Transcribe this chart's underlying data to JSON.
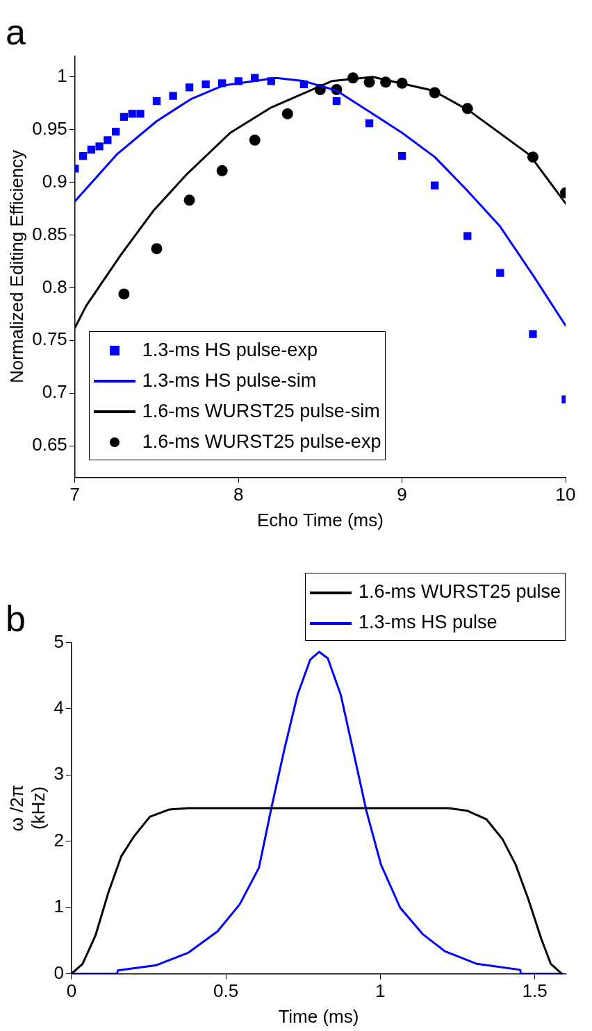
{
  "chart_data": [
    {
      "type": "scatter",
      "title": "a",
      "xlabel": "Echo Time (ms)",
      "ylabel": "Normalized Editing Efficiency",
      "xlim": [
        7,
        10
      ],
      "xticks": [
        7,
        8,
        9,
        10
      ],
      "ylim": [
        0.62,
        1.02
      ],
      "yticks": [
        0.65,
        0.7,
        0.75,
        0.8,
        0.85,
        0.9,
        0.95,
        1
      ],
      "legend": "bottom left",
      "grid": false,
      "series": [
        {
          "name": "1.3-ms HS pulse-exp",
          "type": "scatter",
          "marker": "square",
          "color": "#0000ff",
          "x": [
            7.0,
            7.05,
            7.1,
            7.15,
            7.2,
            7.25,
            7.3,
            7.35,
            7.4,
            7.5,
            7.6,
            7.7,
            7.8,
            7.9,
            8.0,
            8.1,
            8.2,
            8.4,
            8.6,
            8.8,
            9.0,
            9.2,
            9.4,
            9.6,
            9.8,
            10.0
          ],
          "values": [
            0.913,
            0.925,
            0.931,
            0.934,
            0.94,
            0.948,
            0.962,
            0.965,
            0.965,
            0.977,
            0.982,
            0.99,
            0.993,
            0.994,
            0.996,
            0.999,
            0.996,
            0.993,
            0.977,
            0.956,
            0.925,
            0.897,
            0.849,
            0.814,
            0.756,
            0.694
          ]
        },
        {
          "name": "1.3-ms HS pulse-sim",
          "type": "line",
          "marker": "none",
          "line_style": "solid",
          "color": "#0000ff",
          "x": [
            7.0,
            7.26,
            7.5,
            7.71,
            7.91,
            8.23,
            8.4,
            8.6,
            8.8,
            9.0,
            9.2,
            9.4,
            9.6,
            9.8,
            10.0
          ],
          "values": [
            0.882,
            0.927,
            0.958,
            0.979,
            0.992,
            0.999,
            0.996,
            0.987,
            0.967,
            0.947,
            0.924,
            0.892,
            0.858,
            0.812,
            0.764
          ]
        },
        {
          "name": "1.6-ms WURST25 pulse-sim",
          "type": "line",
          "marker": "none",
          "line_style": "solid",
          "color": "#000000",
          "x": [
            7.0,
            7.07,
            7.28,
            7.48,
            7.68,
            7.95,
            8.2,
            8.57,
            8.82,
            9.19,
            9.41,
            9.78,
            10.0
          ],
          "values": [
            0.762,
            0.783,
            0.831,
            0.873,
            0.907,
            0.947,
            0.971,
            0.996,
            1.0,
            0.987,
            0.968,
            0.926,
            0.88
          ]
        },
        {
          "name": "1.6-ms WURST25 pulse-exp",
          "type": "scatter",
          "marker": "circle",
          "color": "#000000",
          "x": [
            7.3,
            7.5,
            7.7,
            7.9,
            8.1,
            8.3,
            8.5,
            8.6,
            8.7,
            8.8,
            8.9,
            9.0,
            9.2,
            9.4,
            9.8,
            10.0
          ],
          "values": [
            0.794,
            0.837,
            0.883,
            0.911,
            0.94,
            0.965,
            0.988,
            0.988,
            0.999,
            0.995,
            0.995,
            0.994,
            0.985,
            0.97,
            0.924,
            0.89
          ]
        }
      ]
    },
    {
      "type": "line",
      "title": "b",
      "xlabel": "Time (ms)",
      "ylabel": "ω /2π\n(kHz)",
      "xlim": [
        0,
        1.6
      ],
      "xticks": [
        0,
        0.5,
        1,
        1.5
      ],
      "ylim": [
        0,
        5
      ],
      "yticks": [
        0,
        1,
        2,
        3,
        4,
        5
      ],
      "legend": "top right",
      "grid": false,
      "series": [
        {
          "name": "1.6-ms WURST25 pulse",
          "color": "#000000",
          "line_style": "solid",
          "x": [
            0,
            0.036,
            0.078,
            0.119,
            0.161,
            0.202,
            0.254,
            0.317,
            0.379,
            0.8,
            1.22,
            1.282,
            1.344,
            1.396,
            1.438,
            1.479,
            1.521,
            1.552,
            1.588
          ],
          "values": [
            0,
            0.15,
            0.58,
            1.22,
            1.77,
            2.07,
            2.37,
            2.48,
            2.5,
            2.5,
            2.5,
            2.46,
            2.33,
            2.03,
            1.65,
            1.13,
            0.53,
            0.15,
            0
          ]
        },
        {
          "name": "1.3-ms HS pulse",
          "color": "#0000ff",
          "line_style": "solid",
          "x": [
            0,
            0.148,
            0.15,
            0.275,
            0.379,
            0.473,
            0.545,
            0.607,
            0.649,
            0.69,
            0.732,
            0.773,
            0.802,
            0.83,
            0.872,
            0.913,
            0.955,
            1.002,
            1.064,
            1.137,
            1.209,
            1.313,
            1.453,
            1.455,
            1.59
          ],
          "values": [
            0,
            0,
            0.05,
            0.13,
            0.32,
            0.64,
            1.05,
            1.6,
            2.54,
            3.4,
            4.21,
            4.74,
            4.86,
            4.76,
            4.21,
            3.35,
            2.46,
            1.65,
            1.0,
            0.6,
            0.34,
            0.15,
            0.06,
            0,
            0
          ]
        }
      ]
    }
  ]
}
